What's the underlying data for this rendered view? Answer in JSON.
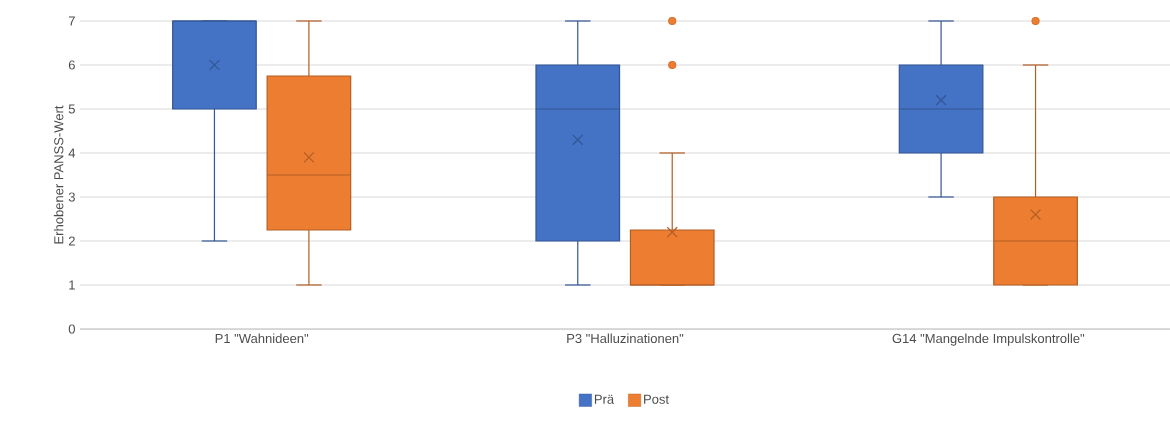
{
  "chart_data": {
    "type": "box",
    "ylabel": "Erhobener PANSS-Wert",
    "categories": [
      "P1 \"Wahnideen\"",
      "P3 \"Halluzinationen\"",
      "G14 \"Mangelnde Impulskontrolle\""
    ],
    "series": [
      {
        "name": "Prä",
        "color": "#4472c4",
        "boxes": [
          {
            "low": 2,
            "q1": 5,
            "median": 7,
            "q3": 7,
            "high": 7,
            "mean": 6
          },
          {
            "low": 1,
            "q1": 2,
            "median": 5,
            "q3": 6,
            "high": 7,
            "mean": 4.3
          },
          {
            "low": 3,
            "q1": 4,
            "median": 5,
            "q3": 6,
            "high": 7,
            "mean": 5.2
          }
        ]
      },
      {
        "name": "Post",
        "color": "#ed7d31",
        "boxes": [
          {
            "low": 1,
            "q1": 2.25,
            "median": 3.5,
            "q3": 5.75,
            "high": 7,
            "mean": 3.9
          },
          {
            "low": 1,
            "q1": 1,
            "median": 1,
            "q3": 2.25,
            "high": 4,
            "mean": 2.2,
            "outliers": [
              6,
              7
            ]
          },
          {
            "low": 1,
            "q1": 1,
            "median": 2,
            "q3": 3,
            "high": 6,
            "mean": 2.6,
            "outliers": [
              7
            ]
          }
        ]
      }
    ],
    "ylim": [
      0,
      7
    ],
    "yticks": [
      0,
      1,
      2,
      3,
      4,
      5,
      6,
      7
    ],
    "grid": "y",
    "legend": "bottom"
  }
}
